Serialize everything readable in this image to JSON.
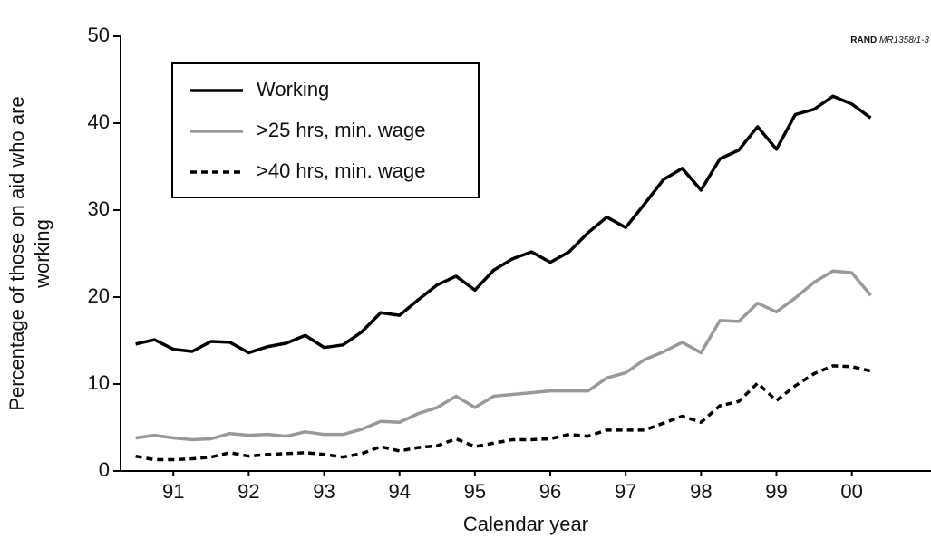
{
  "chart_data": {
    "type": "line",
    "source_org": "RAND",
    "source_id": "MR1358/1-3",
    "xlabel": "Calendar year",
    "ylabel": [
      "Percentage of those on aid who are",
      "working"
    ],
    "x": [
      1990.5,
      1990.75,
      1991,
      1991.25,
      1991.5,
      1991.75,
      1992,
      1992.25,
      1992.5,
      1992.75,
      1993,
      1993.25,
      1993.5,
      1993.75,
      1994,
      1994.25,
      1994.5,
      1994.75,
      1995,
      1995.25,
      1995.5,
      1995.75,
      1996,
      1996.25,
      1996.5,
      1996.75,
      1997,
      1997.25,
      1997.5,
      1997.75,
      1998,
      1998.25,
      1998.5,
      1998.75,
      1999,
      1999.25,
      1999.5,
      1999.75,
      2000,
      2000.25
    ],
    "series": [
      {
        "name": "Working",
        "color": "#000000",
        "dash": "solid",
        "values": [
          14.6,
          15.1,
          14.0,
          13.75,
          14.9,
          14.8,
          13.6,
          14.3,
          14.7,
          15.6,
          14.2,
          14.5,
          16.0,
          18.2,
          17.9,
          19.7,
          21.4,
          22.4,
          20.8,
          23.1,
          24.4,
          25.2,
          24.0,
          25.2,
          27.4,
          29.2,
          28.0,
          30.7,
          33.5,
          34.8,
          32.3,
          35.9,
          36.9,
          39.6,
          37.0,
          41.0,
          41.6,
          43.1,
          42.2,
          40.6
        ]
      },
      {
        "name": ">25 hrs, min. wage",
        "color": "#999999",
        "dash": "solid",
        "values": [
          3.8,
          4.1,
          3.8,
          3.6,
          3.7,
          4.3,
          4.1,
          4.2,
          4.0,
          4.5,
          4.2,
          4.2,
          4.8,
          5.7,
          5.6,
          6.6,
          7.3,
          8.6,
          7.3,
          8.6,
          8.8,
          9.0,
          9.2,
          9.2,
          9.2,
          10.7,
          11.3,
          12.8,
          13.7,
          14.8,
          13.6,
          17.3,
          17.2,
          19.3,
          18.3,
          19.9,
          21.7,
          23.0,
          22.8,
          20.2
        ]
      },
      {
        "name": ">40 hrs, min. wage",
        "color": "#000000",
        "dash": "dashed",
        "values": [
          1.7,
          1.3,
          1.3,
          1.4,
          1.6,
          2.1,
          1.7,
          1.9,
          2.0,
          2.1,
          1.9,
          1.6,
          2.0,
          2.8,
          2.3,
          2.7,
          2.9,
          3.7,
          2.8,
          3.2,
          3.6,
          3.6,
          3.7,
          4.2,
          4.0,
          4.7,
          4.7,
          4.7,
          5.5,
          6.3,
          5.6,
          7.5,
          8.0,
          10.1,
          8.1,
          9.8,
          11.2,
          12.1,
          12.0,
          11.5
        ]
      }
    ],
    "xlim": [
      1990.3,
      2001.05
    ],
    "xticks": [
      {
        "value": 1991,
        "label": "91"
      },
      {
        "value": 1992,
        "label": "92"
      },
      {
        "value": 1993,
        "label": "93"
      },
      {
        "value": 1994,
        "label": "94"
      },
      {
        "value": 1995,
        "label": "95"
      },
      {
        "value": 1996,
        "label": "96"
      },
      {
        "value": 1997,
        "label": "97"
      },
      {
        "value": 1998,
        "label": "98"
      },
      {
        "value": 1999,
        "label": "99"
      },
      {
        "value": 2000,
        "label": "00"
      }
    ],
    "ylim": [
      0,
      50
    ],
    "yticks": [
      0,
      10,
      20,
      30,
      40,
      50
    ],
    "grid": false,
    "legend": "top-left"
  }
}
